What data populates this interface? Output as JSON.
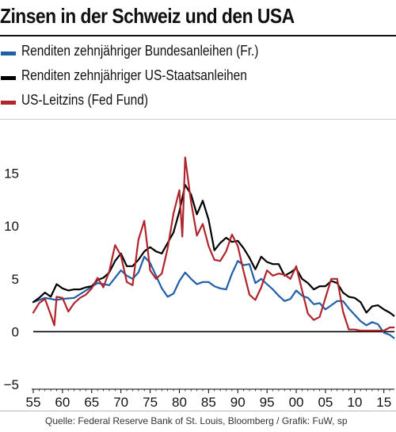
{
  "title": "Zinsen in der Schweiz und den USA",
  "source": "Quelle:  Federal Reserve Bank of St. Louis, Bloomberg / Grafik: FuW, sp",
  "chart_data": {
    "type": "line",
    "title": "Zinsen in der Schweiz und den USA",
    "xlabel": "",
    "ylabel": "",
    "xlim": [
      1955,
      2016.8
    ],
    "ylim": [
      -5,
      20
    ],
    "grid": false,
    "legend_position": "top-left",
    "x_ticks": [
      1955,
      1960,
      1965,
      1970,
      1975,
      1980,
      1985,
      1990,
      1995,
      2000,
      2005,
      2010,
      2015
    ],
    "x_tick_labels": [
      "55",
      "60",
      "65",
      "70",
      "75",
      "80",
      "85",
      "90",
      "95",
      "00",
      "05",
      "10",
      "15"
    ],
    "y_ticks": [
      -5,
      0,
      5,
      10,
      15
    ],
    "y_tick_labels": [
      "−5",
      "0",
      "5",
      "10",
      "15"
    ],
    "series": [
      {
        "name": "Renditen zehnjähriger Bundesanleihen (Fr.)",
        "color": "#1f5fa8",
        "x": [
          1955,
          1957,
          1959,
          1960,
          1962,
          1964,
          1966,
          1968,
          1970,
          1971,
          1972,
          1973,
          1974,
          1975,
          1976,
          1977,
          1978,
          1979,
          1980,
          1981,
          1982,
          1983,
          1984,
          1985,
          1986,
          1987,
          1988,
          1989,
          1990,
          1991,
          1992,
          1993,
          1994,
          1995,
          1996,
          1997,
          1998,
          1999,
          2000,
          2001,
          2002,
          2003,
          2004,
          2005,
          2006,
          2007,
          2008,
          2009,
          2010,
          2011,
          2012,
          2013,
          2014,
          2015,
          2016,
          2016.7
        ],
        "y": [
          2.8,
          3.2,
          3.0,
          3.1,
          3.2,
          3.9,
          4.6,
          4.4,
          5.8,
          5.3,
          5.0,
          5.6,
          7.1,
          6.5,
          5.3,
          4.1,
          3.3,
          3.6,
          4.8,
          5.6,
          5.0,
          4.5,
          4.7,
          4.7,
          4.3,
          4.1,
          4.0,
          5.5,
          6.7,
          6.3,
          6.4,
          4.6,
          5.0,
          4.5,
          4.0,
          3.4,
          2.9,
          3.1,
          3.9,
          3.4,
          3.2,
          2.6,
          2.7,
          2.1,
          2.5,
          2.9,
          2.9,
          2.2,
          1.6,
          1.0,
          0.6,
          0.9,
          0.7,
          -0.1,
          -0.3,
          -0.6
        ]
      },
      {
        "name": "Renditen zehnjähriger US-Staatsanleihen",
        "color": "#000000",
        "x": [
          1955,
          1956,
          1957,
          1958,
          1959,
          1960,
          1961,
          1962,
          1963,
          1964,
          1965,
          1966,
          1967,
          1968,
          1969,
          1970,
          1971,
          1972,
          1973,
          1974,
          1975,
          1976,
          1977,
          1978,
          1979,
          1980,
          1981,
          1982,
          1983,
          1984,
          1985,
          1986,
          1987,
          1988,
          1989,
          1990,
          1991,
          1992,
          1993,
          1994,
          1995,
          1996,
          1997,
          1998,
          1999,
          2000,
          2001,
          2002,
          2003,
          2004,
          2005,
          2006,
          2007,
          2008,
          2009,
          2010,
          2011,
          2012,
          2013,
          2014,
          2015,
          2016,
          2016.7
        ],
        "y": [
          2.8,
          3.2,
          3.7,
          3.3,
          4.5,
          4.1,
          3.9,
          4.0,
          4.0,
          4.2,
          4.3,
          4.9,
          5.1,
          5.6,
          6.7,
          7.4,
          6.2,
          6.2,
          6.8,
          7.6,
          8.0,
          7.6,
          7.4,
          8.4,
          9.4,
          11.4,
          13.9,
          13.0,
          11.1,
          12.4,
          10.6,
          7.7,
          8.4,
          8.9,
          8.5,
          8.6,
          7.9,
          7.0,
          5.9,
          7.1,
          6.6,
          6.4,
          6.4,
          5.3,
          5.6,
          6.0,
          5.0,
          4.6,
          4.0,
          4.3,
          4.3,
          4.8,
          4.6,
          3.7,
          3.3,
          3.2,
          2.8,
          1.8,
          2.4,
          2.5,
          2.1,
          1.8,
          1.5
        ]
      },
      {
        "name": "US-Leitzins (Fed Fund)",
        "color": "#b0242c",
        "x": [
          1955,
          1956,
          1957,
          1958,
          1958.6,
          1959,
          1960,
          1961,
          1962,
          1963,
          1964,
          1965,
          1966,
          1967,
          1968,
          1969,
          1970,
          1971,
          1972,
          1973,
          1974,
          1975,
          1976,
          1977,
          1978,
          1979,
          1980,
          1980.5,
          1981,
          1982,
          1983,
          1984,
          1985,
          1986,
          1987,
          1988,
          1989,
          1990,
          1991,
          1992,
          1993,
          1994,
          1995,
          1996,
          1997,
          1998,
          1999,
          2000,
          2001,
          2002,
          2003,
          2004,
          2005,
          2006,
          2007,
          2008,
          2009,
          2010,
          2011,
          2012,
          2013,
          2014,
          2015,
          2016,
          2016.7
        ],
        "y": [
          1.8,
          2.7,
          3.1,
          1.6,
          0.6,
          3.3,
          3.2,
          1.9,
          2.7,
          3.2,
          3.5,
          4.1,
          5.1,
          4.2,
          5.7,
          8.2,
          7.2,
          4.7,
          4.4,
          8.7,
          10.5,
          5.8,
          5.0,
          5.5,
          7.9,
          11.2,
          13.4,
          9.0,
          16.5,
          12.3,
          9.1,
          10.2,
          8.1,
          6.8,
          6.7,
          7.6,
          9.2,
          8.1,
          5.7,
          3.5,
          3.0,
          4.2,
          5.8,
          5.3,
          5.5,
          5.4,
          5.0,
          6.2,
          3.9,
          1.7,
          1.1,
          1.4,
          3.2,
          5.0,
          5.0,
          1.9,
          0.2,
          0.2,
          0.1,
          0.1,
          0.1,
          0.1,
          0.1,
          0.4,
          0.4
        ]
      }
    ]
  }
}
